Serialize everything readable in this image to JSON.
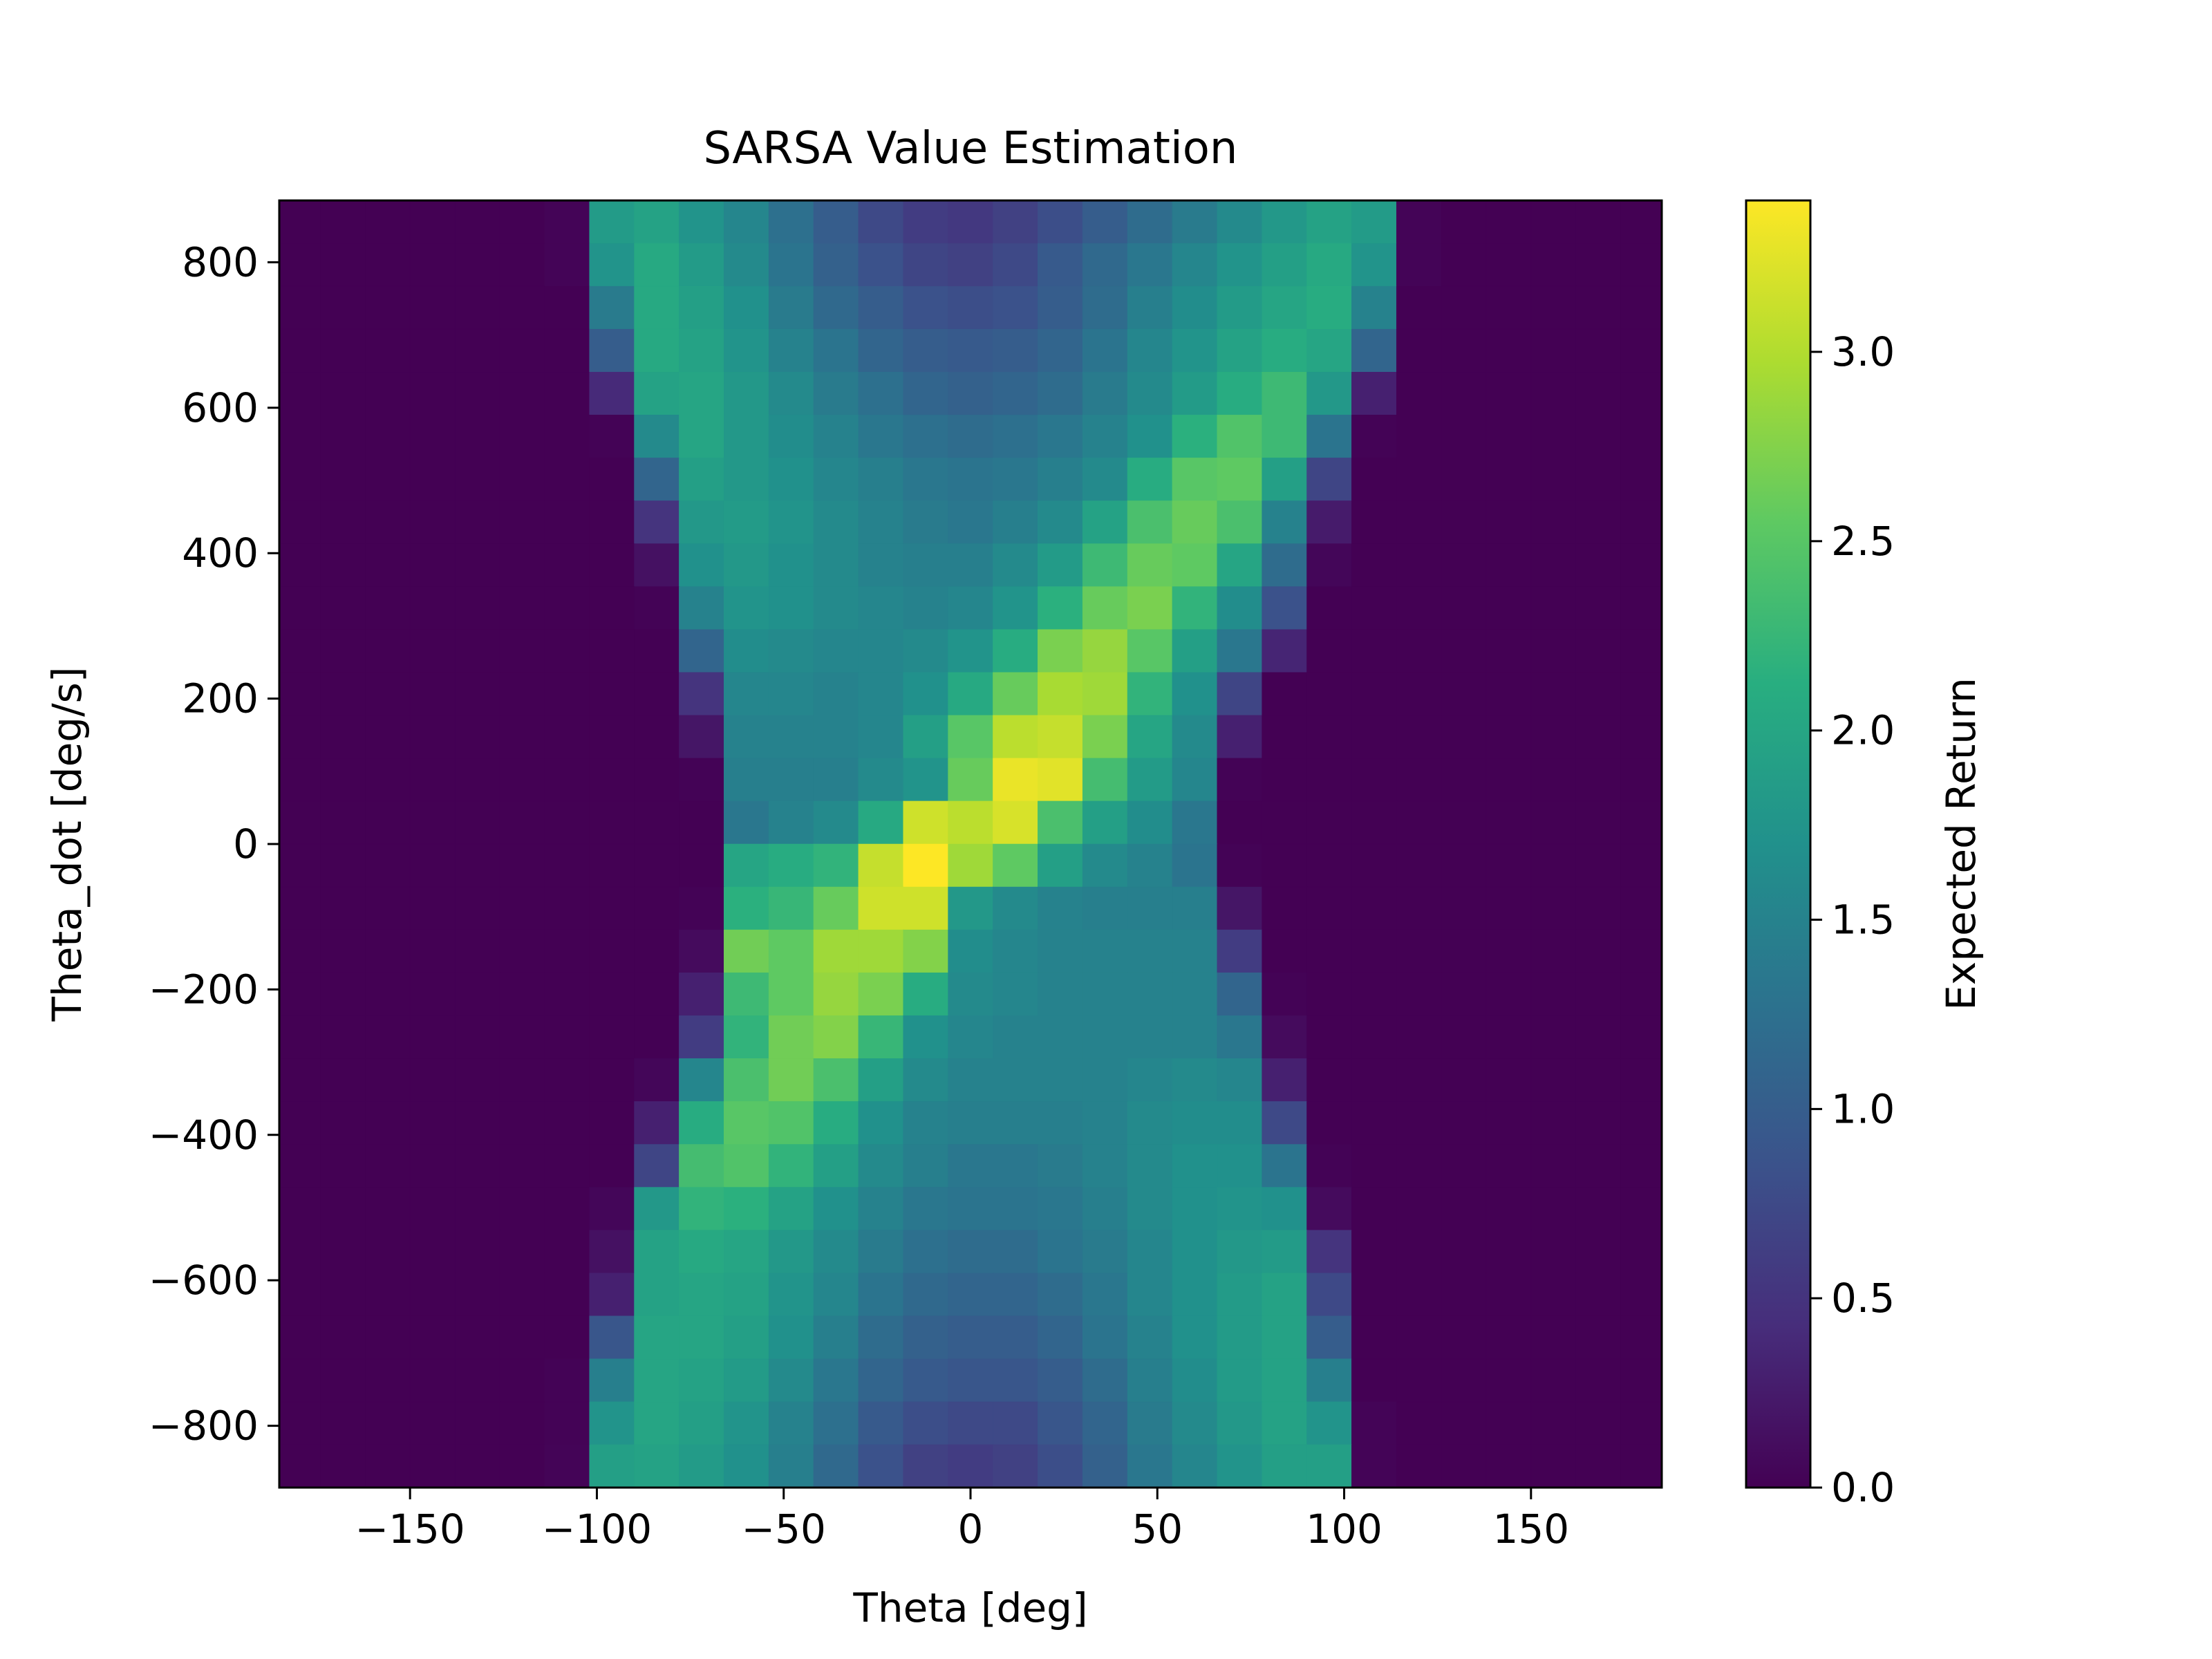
{
  "chart_data": {
    "type": "heatmap",
    "title": "SARSA Value Estimation",
    "xlabel": "Theta [deg]",
    "ylabel": "Theta_dot [deg/s]",
    "colorbar_label": "Expected Return",
    "colormap": "viridis",
    "colormap_stops": [
      "#440154",
      "#472d7b",
      "#3b528b",
      "#2c728e",
      "#21918c",
      "#28ae80",
      "#5ec962",
      "#addc30",
      "#fde725"
    ],
    "xlim": [
      -185,
      185
    ],
    "ylim": [
      -885,
      885
    ],
    "vmin": 0.0,
    "vmax": 3.4,
    "x_ticks": [
      -150,
      -100,
      -50,
      0,
      50,
      100,
      150
    ],
    "x_tick_labels": [
      "−150",
      "−100",
      "−50",
      "0",
      "50",
      "100",
      "150"
    ],
    "y_ticks": [
      -800,
      -600,
      -400,
      -200,
      0,
      200,
      400,
      600,
      800
    ],
    "y_tick_labels": [
      "−800",
      "−600",
      "−400",
      "−200",
      "0",
      "200",
      "400",
      "600",
      "800"
    ],
    "colorbar_ticks": [
      0.0,
      0.5,
      1.0,
      1.5,
      2.0,
      2.5,
      3.0
    ],
    "colorbar_tick_labels": [
      "0.0",
      "0.5",
      "1.0",
      "1.5",
      "2.0",
      "2.5",
      "3.0"
    ],
    "x_bin_edges": [
      -185,
      -174,
      -162,
      -150,
      -138,
      -126,
      -114,
      -102,
      -90,
      -78,
      -66,
      -54,
      -42,
      -30,
      -18,
      -6,
      6,
      18,
      30,
      42,
      54,
      66,
      78,
      90,
      102,
      114,
      126,
      138,
      150,
      162,
      174,
      185
    ],
    "y_bin_edges": [
      -885,
      -826,
      -767,
      -708,
      -649,
      -590,
      -531,
      -472,
      -413,
      -354,
      -295,
      -236,
      -177,
      -118,
      -59,
      0,
      59,
      118,
      177,
      236,
      295,
      354,
      413,
      472,
      531,
      590,
      649,
      708,
      767,
      826,
      885
    ],
    "values": [
      [
        0,
        0,
        0,
        0,
        0,
        0,
        0.03,
        1.85,
        1.95,
        1.75,
        1.55,
        1.25,
        1.0,
        0.75,
        0.6,
        0.55,
        0.65,
        0.8,
        1.0,
        1.2,
        1.4,
        1.6,
        1.8,
        1.95,
        1.85,
        0.03,
        0,
        0,
        0,
        0,
        0
      ],
      [
        0,
        0,
        0,
        0,
        0,
        0,
        0.03,
        1.75,
        2.05,
        1.85,
        1.6,
        1.3,
        1.05,
        0.85,
        0.7,
        0.65,
        0.75,
        0.95,
        1.15,
        1.35,
        1.55,
        1.75,
        1.9,
        2.05,
        1.75,
        0.03,
        0,
        0,
        0,
        0,
        0
      ],
      [
        0,
        0,
        0,
        0,
        0,
        0,
        0,
        1.4,
        2.05,
        1.9,
        1.7,
        1.4,
        1.15,
        1.0,
        0.85,
        0.8,
        0.85,
        1.0,
        1.2,
        1.45,
        1.65,
        1.85,
        2.0,
        2.1,
        1.5,
        0,
        0,
        0,
        0,
        0,
        0
      ],
      [
        0,
        0,
        0,
        0,
        0,
        0,
        0,
        1.0,
        2.05,
        1.95,
        1.75,
        1.5,
        1.3,
        1.1,
        1.0,
        0.95,
        1.0,
        1.1,
        1.3,
        1.55,
        1.75,
        1.95,
        2.1,
        2.0,
        1.1,
        0,
        0,
        0,
        0,
        0,
        0
      ],
      [
        0,
        0,
        0,
        0,
        0,
        0,
        0,
        0.4,
        1.95,
        2.0,
        1.8,
        1.6,
        1.4,
        1.25,
        1.1,
        1.05,
        1.1,
        1.2,
        1.4,
        1.6,
        1.85,
        2.1,
        2.3,
        1.8,
        0.3,
        0,
        0,
        0,
        0,
        0,
        0
      ],
      [
        0,
        0,
        0,
        0,
        0,
        0,
        0,
        0.02,
        1.6,
        2.0,
        1.8,
        1.65,
        1.5,
        1.35,
        1.25,
        1.2,
        1.25,
        1.35,
        1.5,
        1.7,
        2.15,
        2.45,
        2.3,
        1.3,
        0.02,
        0,
        0,
        0,
        0,
        0,
        0
      ],
      [
        0,
        0,
        0,
        0,
        0,
        0,
        0,
        0,
        1.1,
        1.9,
        1.8,
        1.7,
        1.55,
        1.45,
        1.35,
        1.3,
        1.35,
        1.45,
        1.6,
        2.1,
        2.5,
        2.55,
        1.9,
        0.7,
        0,
        0,
        0,
        0,
        0,
        0,
        0
      ],
      [
        0,
        0,
        0,
        0,
        0,
        0,
        0,
        0,
        0.5,
        1.8,
        1.85,
        1.75,
        1.6,
        1.5,
        1.4,
        1.35,
        1.45,
        1.6,
        1.95,
        2.4,
        2.6,
        2.4,
        1.5,
        0.25,
        0,
        0,
        0,
        0,
        0,
        0,
        0
      ],
      [
        0,
        0,
        0,
        0,
        0,
        0,
        0,
        0,
        0.15,
        1.7,
        1.8,
        1.7,
        1.6,
        1.5,
        1.45,
        1.45,
        1.6,
        1.85,
        2.3,
        2.6,
        2.55,
        2.0,
        1.2,
        0.05,
        0,
        0,
        0,
        0,
        0,
        0,
        0
      ],
      [
        0,
        0,
        0,
        0,
        0,
        0,
        0,
        0,
        0.02,
        1.5,
        1.75,
        1.7,
        1.6,
        1.55,
        1.5,
        1.55,
        1.75,
        2.15,
        2.6,
        2.7,
        2.2,
        1.65,
        0.85,
        0,
        0,
        0,
        0,
        0,
        0,
        0,
        0
      ],
      [
        0,
        0,
        0,
        0,
        0,
        0,
        0,
        0,
        0,
        1.1,
        1.65,
        1.6,
        1.55,
        1.55,
        1.6,
        1.75,
        2.1,
        2.7,
        2.85,
        2.5,
        1.9,
        1.35,
        0.35,
        0,
        0,
        0,
        0,
        0,
        0,
        0,
        0
      ],
      [
        0,
        0,
        0,
        0,
        0,
        0,
        0,
        0,
        0,
        0.5,
        1.55,
        1.55,
        1.5,
        1.55,
        1.7,
        2.05,
        2.6,
        2.95,
        2.9,
        2.2,
        1.7,
        0.7,
        0,
        0,
        0,
        0,
        0,
        0,
        0,
        0,
        0
      ],
      [
        0,
        0,
        0,
        0,
        0,
        0,
        0,
        0,
        0,
        0.2,
        1.5,
        1.5,
        1.5,
        1.55,
        1.9,
        2.5,
        3.05,
        3.1,
        2.7,
        2.0,
        1.6,
        0.3,
        0,
        0,
        0,
        0,
        0,
        0,
        0,
        0,
        0
      ],
      [
        0,
        0,
        0,
        0,
        0,
        0,
        0,
        0,
        0,
        0.02,
        1.45,
        1.45,
        1.45,
        1.6,
        1.75,
        2.6,
        3.3,
        3.25,
        2.35,
        1.85,
        1.55,
        0.02,
        0,
        0,
        0,
        0,
        0,
        0,
        0,
        0,
        0
      ],
      [
        0,
        0,
        0,
        0,
        0,
        0,
        0,
        0,
        0,
        0,
        1.35,
        1.5,
        1.6,
        2.05,
        3.15,
        3.05,
        3.2,
        2.4,
        1.9,
        1.65,
        1.35,
        0,
        0,
        0,
        0,
        0,
        0,
        0,
        0,
        0,
        0
      ],
      [
        0,
        0,
        0,
        0,
        0,
        0,
        0,
        0,
        0,
        0,
        2.0,
        2.1,
        2.2,
        3.1,
        3.4,
        2.9,
        2.55,
        1.9,
        1.6,
        1.5,
        1.3,
        0.02,
        0,
        0,
        0,
        0,
        0,
        0,
        0,
        0,
        0
      ],
      [
        0,
        0,
        0,
        0,
        0,
        0,
        0,
        0,
        0,
        0.02,
        2.15,
        2.25,
        2.6,
        3.15,
        3.15,
        1.8,
        1.6,
        1.5,
        1.45,
        1.45,
        1.45,
        0.2,
        0,
        0,
        0,
        0,
        0,
        0,
        0,
        0,
        0
      ],
      [
        0,
        0,
        0,
        0,
        0,
        0,
        0,
        0,
        0,
        0.1,
        2.65,
        2.55,
        2.9,
        2.9,
        2.75,
        1.65,
        1.55,
        1.5,
        1.5,
        1.5,
        1.5,
        0.6,
        0,
        0,
        0,
        0,
        0,
        0,
        0,
        0,
        0
      ],
      [
        0,
        0,
        0,
        0,
        0,
        0,
        0,
        0,
        0,
        0.3,
        2.3,
        2.55,
        2.85,
        2.7,
        2.1,
        1.6,
        1.55,
        1.5,
        1.5,
        1.5,
        1.5,
        1.1,
        0.02,
        0,
        0,
        0,
        0,
        0,
        0,
        0,
        0
      ],
      [
        0,
        0,
        0,
        0,
        0,
        0,
        0,
        0,
        0,
        0.6,
        2.2,
        2.65,
        2.75,
        2.25,
        1.7,
        1.55,
        1.5,
        1.5,
        1.5,
        1.5,
        1.5,
        1.35,
        0.1,
        0,
        0,
        0,
        0,
        0,
        0,
        0,
        0
      ],
      [
        0,
        0,
        0,
        0,
        0,
        0,
        0,
        0,
        0.05,
        1.55,
        2.4,
        2.65,
        2.4,
        1.9,
        1.6,
        1.5,
        1.5,
        1.5,
        1.5,
        1.55,
        1.6,
        1.55,
        0.3,
        0,
        0,
        0,
        0,
        0,
        0,
        0,
        0
      ],
      [
        0,
        0,
        0,
        0,
        0,
        0,
        0,
        0,
        0.3,
        2.1,
        2.5,
        2.45,
        2.1,
        1.7,
        1.5,
        1.45,
        1.45,
        1.45,
        1.5,
        1.6,
        1.65,
        1.65,
        0.75,
        0,
        0,
        0,
        0,
        0,
        0,
        0,
        0
      ],
      [
        0,
        0,
        0,
        0,
        0,
        0,
        0,
        0,
        0.7,
        2.35,
        2.45,
        2.2,
        1.9,
        1.6,
        1.45,
        1.35,
        1.35,
        1.4,
        1.5,
        1.6,
        1.7,
        1.7,
        1.3,
        0.02,
        0,
        0,
        0,
        0,
        0,
        0,
        0
      ],
      [
        0,
        0,
        0,
        0,
        0,
        0,
        0,
        0.05,
        1.8,
        2.2,
        2.15,
        1.95,
        1.7,
        1.5,
        1.35,
        1.3,
        1.3,
        1.35,
        1.45,
        1.6,
        1.7,
        1.75,
        1.7,
        0.1,
        0,
        0,
        0,
        0,
        0,
        0,
        0
      ],
      [
        0,
        0,
        0,
        0,
        0,
        0,
        0,
        0.15,
        1.95,
        2.05,
        2.0,
        1.8,
        1.6,
        1.4,
        1.25,
        1.2,
        1.2,
        1.3,
        1.4,
        1.55,
        1.7,
        1.8,
        1.85,
        0.5,
        0,
        0,
        0,
        0,
        0,
        0,
        0
      ],
      [
        0,
        0,
        0,
        0,
        0,
        0,
        0,
        0.3,
        1.95,
        2.0,
        1.95,
        1.75,
        1.55,
        1.3,
        1.15,
        1.1,
        1.1,
        1.2,
        1.35,
        1.55,
        1.7,
        1.85,
        1.95,
        0.75,
        0,
        0,
        0,
        0,
        0,
        0,
        0
      ],
      [
        0,
        0,
        0,
        0,
        0,
        0,
        0,
        0.9,
        2.0,
        2.0,
        1.9,
        1.7,
        1.45,
        1.2,
        1.05,
        1.0,
        1.0,
        1.1,
        1.3,
        1.5,
        1.7,
        1.85,
        1.95,
        1.0,
        0,
        0,
        0,
        0,
        0,
        0,
        0
      ],
      [
        0,
        0,
        0,
        0,
        0,
        0,
        0.02,
        1.45,
        2.0,
        1.95,
        1.85,
        1.6,
        1.35,
        1.1,
        0.95,
        0.9,
        0.9,
        1.0,
        1.2,
        1.45,
        1.65,
        1.85,
        1.95,
        1.45,
        0,
        0,
        0,
        0,
        0,
        0,
        0
      ],
      [
        0,
        0,
        0,
        0,
        0,
        0,
        0.02,
        1.75,
        2.0,
        1.9,
        1.75,
        1.5,
        1.25,
        0.95,
        0.8,
        0.75,
        0.75,
        0.9,
        1.1,
        1.4,
        1.6,
        1.8,
        1.95,
        1.75,
        0.03,
        0,
        0,
        0,
        0,
        0,
        0
      ],
      [
        0,
        0,
        0,
        0,
        0,
        0,
        0.03,
        1.9,
        1.95,
        1.85,
        1.7,
        1.45,
        1.15,
        0.85,
        0.65,
        0.6,
        0.65,
        0.8,
        1.05,
        1.35,
        1.55,
        1.75,
        1.9,
        1.9,
        0.03,
        0,
        0,
        0,
        0,
        0,
        0
      ]
    ]
  }
}
